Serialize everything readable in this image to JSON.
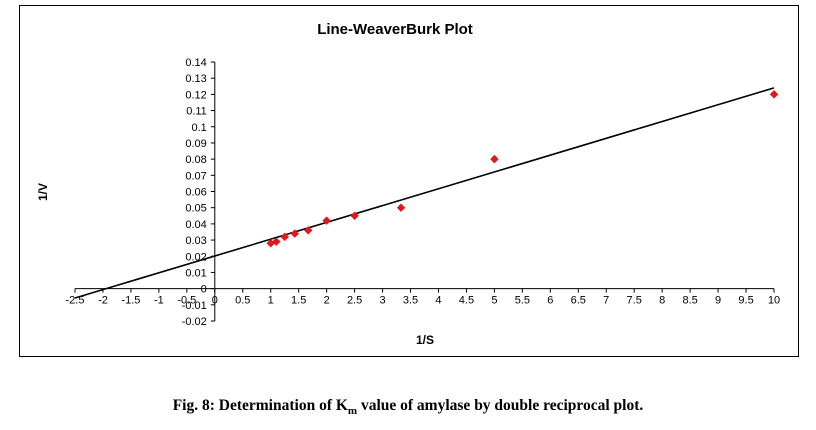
{
  "chart_data": {
    "type": "scatter",
    "title": "Line-WeaverBurk Plot",
    "xlabel": "1/S",
    "ylabel": "1/V",
    "xlim": [
      -2.5,
      10
    ],
    "ylim": [
      -0.02,
      0.14
    ],
    "x_ticks": [
      "-2.5",
      "-2",
      "-1.5",
      "-1",
      "-0.5",
      "0",
      "0.5",
      "1",
      "1.5",
      "2",
      "2.5",
      "3",
      "3.5",
      "4",
      "4.5",
      "5",
      "5.5",
      "6",
      "6.5",
      "7",
      "7.5",
      "8",
      "8.5",
      "9",
      "9.5",
      "10"
    ],
    "y_ticks": [
      "-0.02",
      "-0.01",
      "0",
      "0.01",
      "0.02",
      "0.03",
      "0.04",
      "0.05",
      "0.06",
      "0.07",
      "0.08",
      "0.09",
      "0.1",
      "0.11",
      "0.12",
      "0.13",
      "0.14"
    ],
    "series": [
      {
        "marker": "diamond",
        "color": "#e8141b",
        "x": [
          1.0,
          1.1,
          1.25,
          1.43,
          1.67,
          2.0,
          2.5,
          3.33,
          5.0,
          10.0
        ],
        "y": [
          0.028,
          0.029,
          0.032,
          0.034,
          0.036,
          0.042,
          0.045,
          0.05,
          0.08,
          0.12
        ]
      }
    ],
    "trendline": {
      "x": [
        -2.5,
        10.0
      ],
      "y": [
        -0.0058,
        0.124
      ],
      "color": "#000000"
    },
    "grid": false,
    "legend": "none"
  },
  "caption": {
    "prefix": "Fig.  8: Determination of K",
    "subscript": "m",
    "suffix": " value of amylase by double reciprocal plot."
  }
}
